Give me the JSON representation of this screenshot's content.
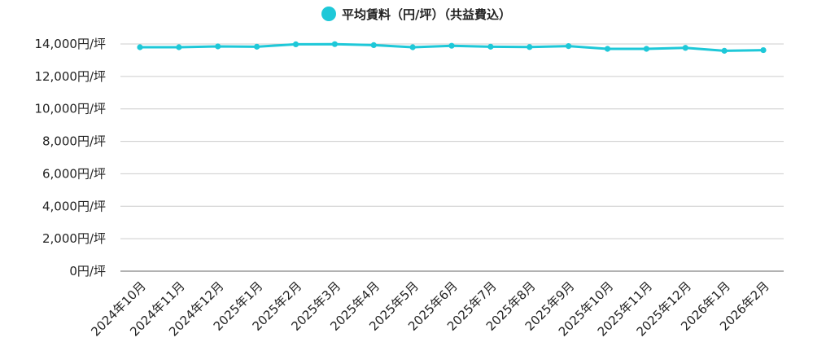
{
  "chart_data": {
    "type": "line",
    "title": "",
    "xlabel": "",
    "ylabel": "",
    "categories": [
      "2024年10月",
      "2024年11月",
      "2024年12月",
      "2025年1月",
      "2025年2月",
      "2025年3月",
      "2025年4月",
      "2025年5月",
      "2025年6月",
      "2025年7月",
      "2025年8月",
      "2025年9月",
      "2025年10月",
      "2025年11月",
      "2025年12月",
      "2026年1月",
      "2026年2月"
    ],
    "series": [
      {
        "name": "平均賃料（円/坪）（共益費込）",
        "color": "#1ec8d8",
        "values": [
          13800,
          13800,
          13850,
          13830,
          13980,
          13990,
          13930,
          13800,
          13890,
          13830,
          13810,
          13870,
          13700,
          13700,
          13760,
          13580,
          13620
        ]
      }
    ],
    "ylim": [
      0,
      14000
    ],
    "y_ticks": [
      0,
      2000,
      4000,
      6000,
      8000,
      10000,
      12000,
      14000
    ],
    "y_tick_labels": [
      "0円/坪",
      "2,000円/坪",
      "4,000円/坪",
      "6,000円/坪",
      "8,000円/坪",
      "10,000円/坪",
      "12,000円/坪",
      "14,000円/坪"
    ],
    "grid": true,
    "legend_position": "top-center",
    "marker": "circle"
  }
}
